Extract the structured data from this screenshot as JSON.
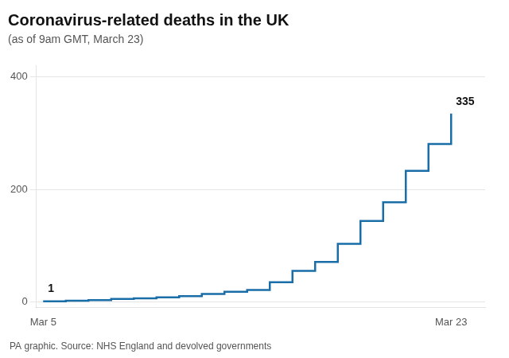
{
  "chart_data": {
    "type": "step",
    "title": "Coronavirus-related deaths in the UK",
    "subtitle": "(as of 9am GMT, March 23)",
    "source": "PA graphic. Source: NHS England and devolved governments",
    "x": [
      0,
      1,
      2,
      3,
      4,
      5,
      6,
      7,
      8,
      9,
      10,
      11,
      12,
      13,
      14,
      15,
      16,
      17,
      18
    ],
    "values": [
      1,
      2,
      3,
      5,
      6,
      8,
      10,
      14,
      18,
      21,
      35,
      55,
      71,
      103,
      144,
      177,
      233,
      281,
      335
    ],
    "color": "#1a6ea8",
    "xlim": [
      -0.3,
      19.5
    ],
    "xticks": [
      {
        "value": 0,
        "label": "Mar 5"
      },
      {
        "value": 18,
        "label": "Mar 23"
      }
    ],
    "ylim": [
      -10,
      420
    ],
    "yticks": [
      0,
      200,
      400
    ],
    "grid": "y",
    "annotations": [
      {
        "text": "1",
        "x": 0,
        "y": 1
      },
      {
        "text": "335",
        "x": 18,
        "y": 335
      }
    ]
  }
}
